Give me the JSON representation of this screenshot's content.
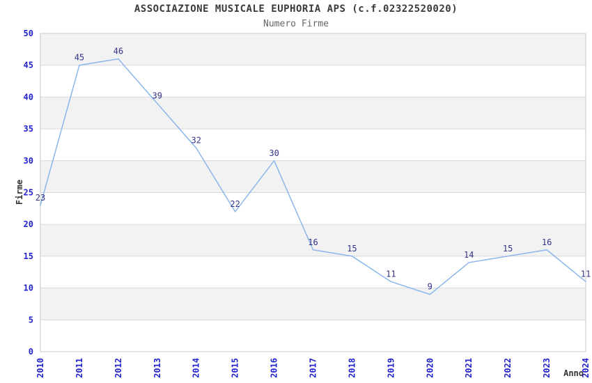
{
  "title": "ASSOCIAZIONE MUSICALE EUPHORIA APS (c.f.02322520020)",
  "subtitle": "Numero Firme",
  "chart_data": {
    "type": "line",
    "title": "ASSOCIAZIONE MUSICALE EUPHORIA APS (c.f.02322520020)",
    "subtitle": "Numero Firme",
    "xlabel": "Anno",
    "ylabel": "Firme",
    "categories": [
      "2010",
      "2011",
      "2012",
      "2013",
      "2014",
      "2015",
      "2016",
      "2017",
      "2018",
      "2019",
      "2020",
      "2021",
      "2022",
      "2023",
      "2024"
    ],
    "series": [
      {
        "name": "Numero Firme",
        "values": [
          23,
          45,
          46,
          39,
          32,
          22,
          30,
          16,
          15,
          11,
          9,
          14,
          15,
          16,
          11
        ]
      }
    ],
    "ylim": [
      0,
      50
    ],
    "ytick_step": 5,
    "grid": true,
    "bands_alternating": true,
    "legend_position": "none",
    "data_labels_shown": true,
    "colors": {
      "line": "#8ab6ea",
      "data_label": "#333388",
      "tick_label": "#2222cc",
      "band_fill": "#f2f2f2",
      "gridline": "#d9d9d9",
      "plot_border": "#c9c9c9",
      "title_text": "#3a3a3a",
      "subtitle_text": "#666666",
      "axis_title_text": "#333333"
    }
  }
}
